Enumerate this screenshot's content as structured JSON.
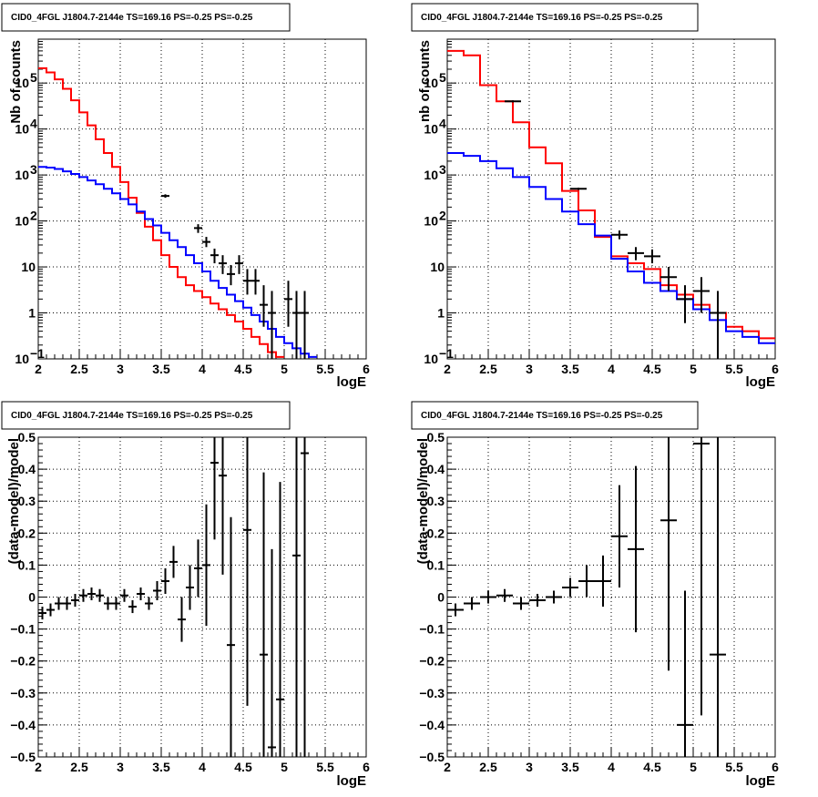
{
  "colors": {
    "data": "#000000",
    "total_model": "#ff0000",
    "component": "#0000ff"
  },
  "chart_data": [
    {
      "type": "line",
      "title": "CID0_4FGL J1804.7-2144e TS=169.16 PS=-0.25 PS=-0.25",
      "xlabel": "logE",
      "ylabel": "Nb of counts",
      "xlim": [
        2,
        6
      ],
      "ylim": [
        0.1,
        900000
      ],
      "yscale": "log",
      "grid": true,
      "xticks": [
        "2",
        "2.5",
        "3",
        "3.5",
        "4",
        "4.5",
        "5",
        "5.5",
        "6"
      ],
      "yticks": [
        {
          "value": 0.1,
          "label": "10",
          "sup": "−1"
        },
        {
          "value": 1,
          "label": "1",
          "sup": ""
        },
        {
          "value": 10,
          "label": "10",
          "sup": ""
        },
        {
          "value": 100,
          "label": "10",
          "sup": "2"
        },
        {
          "value": 1000,
          "label": "10",
          "sup": "3"
        },
        {
          "value": 10000,
          "label": "10",
          "sup": "4"
        },
        {
          "value": 100000,
          "label": "10",
          "sup": "5"
        }
      ],
      "bin_edges": [
        2.0,
        2.1,
        2.2,
        2.3,
        2.4,
        2.5,
        2.6,
        2.7,
        2.8,
        2.9,
        3.0,
        3.1,
        3.2,
        3.3,
        3.4,
        3.5,
        3.6,
        3.7,
        3.8,
        3.9,
        4.0,
        4.1,
        4.2,
        4.3,
        4.4,
        4.5,
        4.6,
        4.7,
        4.8,
        4.9,
        5.0,
        5.1,
        5.2,
        5.3,
        5.4,
        5.5,
        5.6,
        5.7,
        5.8,
        5.9,
        6.0
      ],
      "series": [
        {
          "color": "total_model",
          "values": [
            210000,
            170000,
            120000,
            75000,
            42000,
            23000,
            12000,
            6000,
            3000,
            1500,
            700,
            320,
            150,
            75,
            38,
            18,
            10,
            6,
            4,
            3,
            2.2,
            1.6,
            1.2,
            0.9,
            0.65,
            0.45,
            0.3,
            0.21,
            0.14,
            0.11
          ]
        },
        {
          "color": "component",
          "values": [
            1500,
            1450,
            1350,
            1200,
            1050,
            900,
            760,
            630,
            500,
            400,
            300,
            230,
            160,
            110,
            80,
            55,
            38,
            27,
            18,
            12,
            8,
            5,
            3.5,
            2.5,
            1.8,
            1.3,
            0.9,
            0.65,
            0.45,
            0.3,
            0.22,
            0.17,
            0.13,
            0.11
          ]
        }
      ],
      "points": [
        {
          "x": 3.55,
          "y": 350,
          "yerr": [
            320,
            380
          ]
        },
        {
          "x": 3.95,
          "y": 70,
          "yerr": [
            55,
            85
          ]
        },
        {
          "x": 4.05,
          "y": 35,
          "yerr": [
            27,
            45
          ]
        },
        {
          "x": 4.15,
          "y": 18,
          "yerr": [
            12,
            25
          ]
        },
        {
          "x": 4.25,
          "y": 12,
          "yerr": [
            7,
            18
          ]
        },
        {
          "x": 4.35,
          "y": 7,
          "yerr": [
            4,
            11
          ]
        },
        {
          "x": 4.45,
          "y": 12,
          "yerr": [
            7,
            18
          ]
        },
        {
          "x": 4.55,
          "y": 5,
          "yerr": [
            2.5,
            9
          ]
        },
        {
          "x": 4.65,
          "y": 5,
          "yerr": [
            2.5,
            9
          ]
        },
        {
          "x": 4.75,
          "y": 1.5,
          "yerr": [
            0.5,
            4
          ]
        },
        {
          "x": 4.85,
          "y": 1,
          "yerr": [
            0.1,
            3
          ]
        },
        {
          "x": 5.05,
          "y": 2,
          "yerr": [
            0.5,
            5
          ]
        },
        {
          "x": 5.15,
          "y": 1,
          "yerr": [
            0.1,
            3
          ]
        },
        {
          "x": 5.25,
          "y": 1,
          "yerr": [
            0.1,
            3
          ]
        }
      ]
    },
    {
      "type": "line",
      "title": "CID0_4FGL J1804.7-2144e TS=169.16 PS=-0.25 PS=-0.25",
      "xlabel": "logE",
      "ylabel": "nb of counts",
      "xlim": [
        2,
        6
      ],
      "ylim": [
        0.1,
        900000
      ],
      "yscale": "log",
      "grid": true,
      "xticks": [
        "2",
        "2.5",
        "3",
        "3.5",
        "4",
        "4.5",
        "5",
        "5.5",
        "6"
      ],
      "yticks": [
        {
          "value": 0.1,
          "label": "10",
          "sup": "−1"
        },
        {
          "value": 1,
          "label": "1",
          "sup": ""
        },
        {
          "value": 10,
          "label": "10",
          "sup": ""
        },
        {
          "value": 100,
          "label": "10",
          "sup": "2"
        },
        {
          "value": 1000,
          "label": "10",
          "sup": "3"
        },
        {
          "value": 10000,
          "label": "10",
          "sup": "4"
        },
        {
          "value": 100000,
          "label": "10",
          "sup": "5"
        }
      ],
      "bin_edges": [
        2.0,
        2.2,
        2.4,
        2.6,
        2.8,
        3.0,
        3.2,
        3.4,
        3.6,
        3.8,
        4.0,
        4.2,
        4.4,
        4.6,
        4.8,
        5.0,
        5.2,
        5.4,
        5.6,
        5.8,
        6.0
      ],
      "series": [
        {
          "color": "total_model",
          "values": [
            500000,
            400000,
            90000,
            40000,
            14000,
            4000,
            1800,
            450,
            170,
            45,
            17,
            12,
            9,
            4,
            2.5,
            1.5,
            1,
            0.5,
            0.4,
            0.28
          ]
        },
        {
          "color": "component",
          "values": [
            3000,
            2600,
            2000,
            1400,
            900,
            550,
            300,
            160,
            85,
            48,
            15,
            8,
            4.5,
            3,
            2,
            1.2,
            0.7,
            0.4,
            0.3,
            0.22
          ]
        }
      ],
      "points": [
        {
          "x": 2.8,
          "y": 40000,
          "yerr": [
            38000,
            42000
          ]
        },
        {
          "x": 3.6,
          "y": 500,
          "yerr": [
            470,
            530
          ]
        },
        {
          "x": 4.1,
          "y": 50,
          "yerr": [
            40,
            62
          ]
        },
        {
          "x": 4.3,
          "y": 20,
          "yerr": [
            14,
            27
          ]
        },
        {
          "x": 4.5,
          "y": 17,
          "yerr": [
            12,
            24
          ]
        },
        {
          "x": 4.7,
          "y": 6,
          "yerr": [
            3,
            10
          ]
        },
        {
          "x": 4.9,
          "y": 2,
          "yerr": [
            0.6,
            4
          ]
        },
        {
          "x": 5.1,
          "y": 3,
          "yerr": [
            1,
            6
          ]
        },
        {
          "x": 5.3,
          "y": 1,
          "yerr": [
            0.1,
            3
          ]
        }
      ]
    },
    {
      "type": "scatter",
      "title": "CID0_4FGL J1804.7-2144e TS=169.16 PS=-0.25 PS=-0.25",
      "xlabel": "logE",
      "ylabel": "(data-model)/model",
      "xlim": [
        2,
        6
      ],
      "ylim": [
        -0.5,
        0.5
      ],
      "yscale": "linear",
      "grid": true,
      "xticks": [
        "2",
        "2.5",
        "3",
        "3.5",
        "4",
        "4.5",
        "5",
        "5.5",
        "6"
      ],
      "yticks": [
        {
          "value": -0.5,
          "label": "−0.5"
        },
        {
          "value": -0.4,
          "label": "−0.4"
        },
        {
          "value": -0.3,
          "label": "−0.3"
        },
        {
          "value": -0.2,
          "label": "−0.2"
        },
        {
          "value": -0.1,
          "label": "−0.1"
        },
        {
          "value": 0,
          "label": "0"
        },
        {
          "value": 0.1,
          "label": "0.1"
        },
        {
          "value": 0.2,
          "label": "0.2"
        },
        {
          "value": 0.3,
          "label": "0.3"
        },
        {
          "value": 0.4,
          "label": "0.4"
        },
        {
          "value": 0.5,
          "label": "0.5"
        }
      ],
      "xhalf": 0.05,
      "points": [
        {
          "x": 2.05,
          "y": -0.05,
          "e": 0.02
        },
        {
          "x": 2.15,
          "y": -0.04,
          "e": 0.02
        },
        {
          "x": 2.25,
          "y": -0.02,
          "e": 0.02
        },
        {
          "x": 2.35,
          "y": -0.02,
          "e": 0.02
        },
        {
          "x": 2.45,
          "y": -0.01,
          "e": 0.02
        },
        {
          "x": 2.55,
          "y": 0.005,
          "e": 0.02
        },
        {
          "x": 2.65,
          "y": 0.01,
          "e": 0.02
        },
        {
          "x": 2.75,
          "y": 0.005,
          "e": 0.02
        },
        {
          "x": 2.85,
          "y": -0.02,
          "e": 0.02
        },
        {
          "x": 2.95,
          "y": -0.02,
          "e": 0.02
        },
        {
          "x": 3.05,
          "y": 0.005,
          "e": 0.02
        },
        {
          "x": 3.15,
          "y": -0.03,
          "e": 0.02
        },
        {
          "x": 3.25,
          "y": 0.01,
          "e": 0.02
        },
        {
          "x": 3.35,
          "y": -0.02,
          "e": 0.02
        },
        {
          "x": 3.45,
          "y": 0.02,
          "e": 0.03
        },
        {
          "x": 3.55,
          "y": 0.05,
          "e": 0.04
        },
        {
          "x": 3.65,
          "y": 0.11,
          "e": 0.05
        },
        {
          "x": 3.75,
          "y": -0.07,
          "e": 0.07
        },
        {
          "x": 3.85,
          "y": 0.03,
          "e": 0.07
        },
        {
          "x": 3.95,
          "y": 0.09,
          "e": 0.09
        },
        {
          "x": 4.05,
          "y": 0.1,
          "e": 0.19
        },
        {
          "x": 4.15,
          "y": 0.42,
          "e": 0.24
        },
        {
          "x": 4.25,
          "y": 0.38,
          "e": 0.31
        },
        {
          "x": 4.35,
          "y": -0.15,
          "e": 0.4
        },
        {
          "x": 4.55,
          "y": 0.21,
          "e": 0.55
        },
        {
          "x": 4.75,
          "y": -0.18,
          "e": 0.57
        },
        {
          "x": 4.85,
          "y": -0.47,
          "e": 0.62
        },
        {
          "x": 4.95,
          "y": -0.32,
          "e": 0.68
        },
        {
          "x": 5.15,
          "y": 0.13,
          "e": 0.85
        },
        {
          "x": 5.25,
          "y": 0.45,
          "e": 0.95
        }
      ]
    },
    {
      "type": "scatter",
      "title": "CID0_4FGL J1804.7-2144e TS=169.16 PS=-0.25 PS=-0.25",
      "xlabel": "logE",
      "ylabel": "(data-model)/model",
      "xlim": [
        2,
        6
      ],
      "ylim": [
        -0.5,
        0.5
      ],
      "yscale": "linear",
      "grid": true,
      "xticks": [
        "2",
        "2.5",
        "3",
        "3.5",
        "4",
        "4.5",
        "5",
        "5.5",
        "6"
      ],
      "yticks": [
        {
          "value": -0.5,
          "label": "−0.5"
        },
        {
          "value": -0.4,
          "label": "−0.4"
        },
        {
          "value": -0.3,
          "label": "−0.3"
        },
        {
          "value": -0.2,
          "label": "−0.2"
        },
        {
          "value": -0.1,
          "label": "−0.1"
        },
        {
          "value": 0,
          "label": "0"
        },
        {
          "value": 0.1,
          "label": "0.1"
        },
        {
          "value": 0.2,
          "label": "0.2"
        },
        {
          "value": 0.3,
          "label": "0.3"
        },
        {
          "value": 0.4,
          "label": "0.4"
        },
        {
          "value": 0.5,
          "label": "0.5"
        }
      ],
      "xhalf": 0.1,
      "points": [
        {
          "x": 2.1,
          "y": -0.04,
          "e": 0.02
        },
        {
          "x": 2.3,
          "y": -0.02,
          "e": 0.02
        },
        {
          "x": 2.5,
          "y": 0.0,
          "e": 0.02
        },
        {
          "x": 2.7,
          "y": 0.005,
          "e": 0.02
        },
        {
          "x": 2.9,
          "y": -0.02,
          "e": 0.02
        },
        {
          "x": 3.1,
          "y": -0.01,
          "e": 0.02
        },
        {
          "x": 3.3,
          "y": 0.0,
          "e": 0.02
        },
        {
          "x": 3.5,
          "y": 0.03,
          "e": 0.03
        },
        {
          "x": 3.7,
          "y": 0.05,
          "e": 0.05
        },
        {
          "x": 3.9,
          "y": 0.05,
          "e": 0.08
        },
        {
          "x": 4.1,
          "y": 0.19,
          "e": 0.16
        },
        {
          "x": 4.3,
          "y": 0.15,
          "e": 0.26
        },
        {
          "x": 4.7,
          "y": 0.24,
          "e": 0.47
        },
        {
          "x": 4.9,
          "y": -0.4,
          "e": 0.42
        },
        {
          "x": 5.1,
          "y": 0.48,
          "e": 0.85
        },
        {
          "x": 5.3,
          "y": -0.18,
          "e": 0.85
        }
      ]
    }
  ]
}
